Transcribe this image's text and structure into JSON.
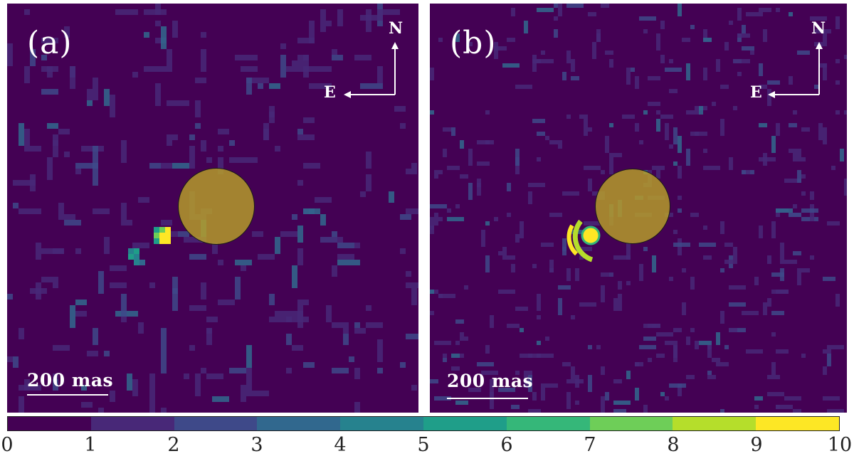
{
  "panels": [
    {
      "id": "a",
      "label": "(a)",
      "north": "N",
      "east": "E",
      "scale_label": "200 mas"
    },
    {
      "id": "b",
      "label": "(b)",
      "north": "N",
      "east": "E",
      "scale_label": "200 mas"
    }
  ],
  "colorbar": {
    "min": 0,
    "max": 10,
    "ticks": [
      "0",
      "1",
      "2",
      "3",
      "4",
      "5",
      "6",
      "7",
      "8",
      "9",
      "10"
    ],
    "colors": [
      "#440154",
      "#482878",
      "#3e4989",
      "#31688e",
      "#26828e",
      "#1f9e89",
      "#35b779",
      "#6ece58",
      "#b5de2b",
      "#fde725"
    ]
  },
  "mask_color": "#b8a028"
}
